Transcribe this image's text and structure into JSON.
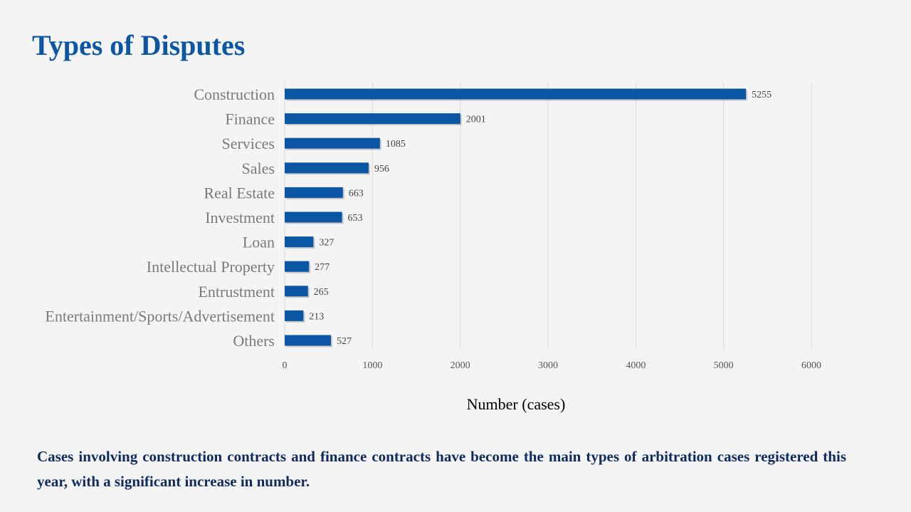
{
  "slide": {
    "title": "Types of Disputes",
    "caption": "Cases involving construction contracts and finance contracts have become the main types of arbitration cases registered this year, with a significant increase in number."
  },
  "chart_data": {
    "type": "bar",
    "orientation": "horizontal",
    "title": "",
    "xlabel": "Number (cases)",
    "ylabel": "",
    "xlim": [
      0,
      6000
    ],
    "xticks": [
      0,
      1000,
      2000,
      3000,
      4000,
      5000,
      6000
    ],
    "grid": "vertical",
    "legend": "none",
    "bar_color": "#0b55a5",
    "categories": [
      "Construction",
      "Finance",
      "Services",
      "Sales",
      "Real Estate",
      "Investment",
      "Loan",
      "Intellectual Property",
      "Entrustment",
      "Entertainment/Sports/Advertisement",
      "Others"
    ],
    "values": [
      5255,
      2001,
      1085,
      956,
      663,
      653,
      327,
      277,
      265,
      213,
      527
    ]
  }
}
